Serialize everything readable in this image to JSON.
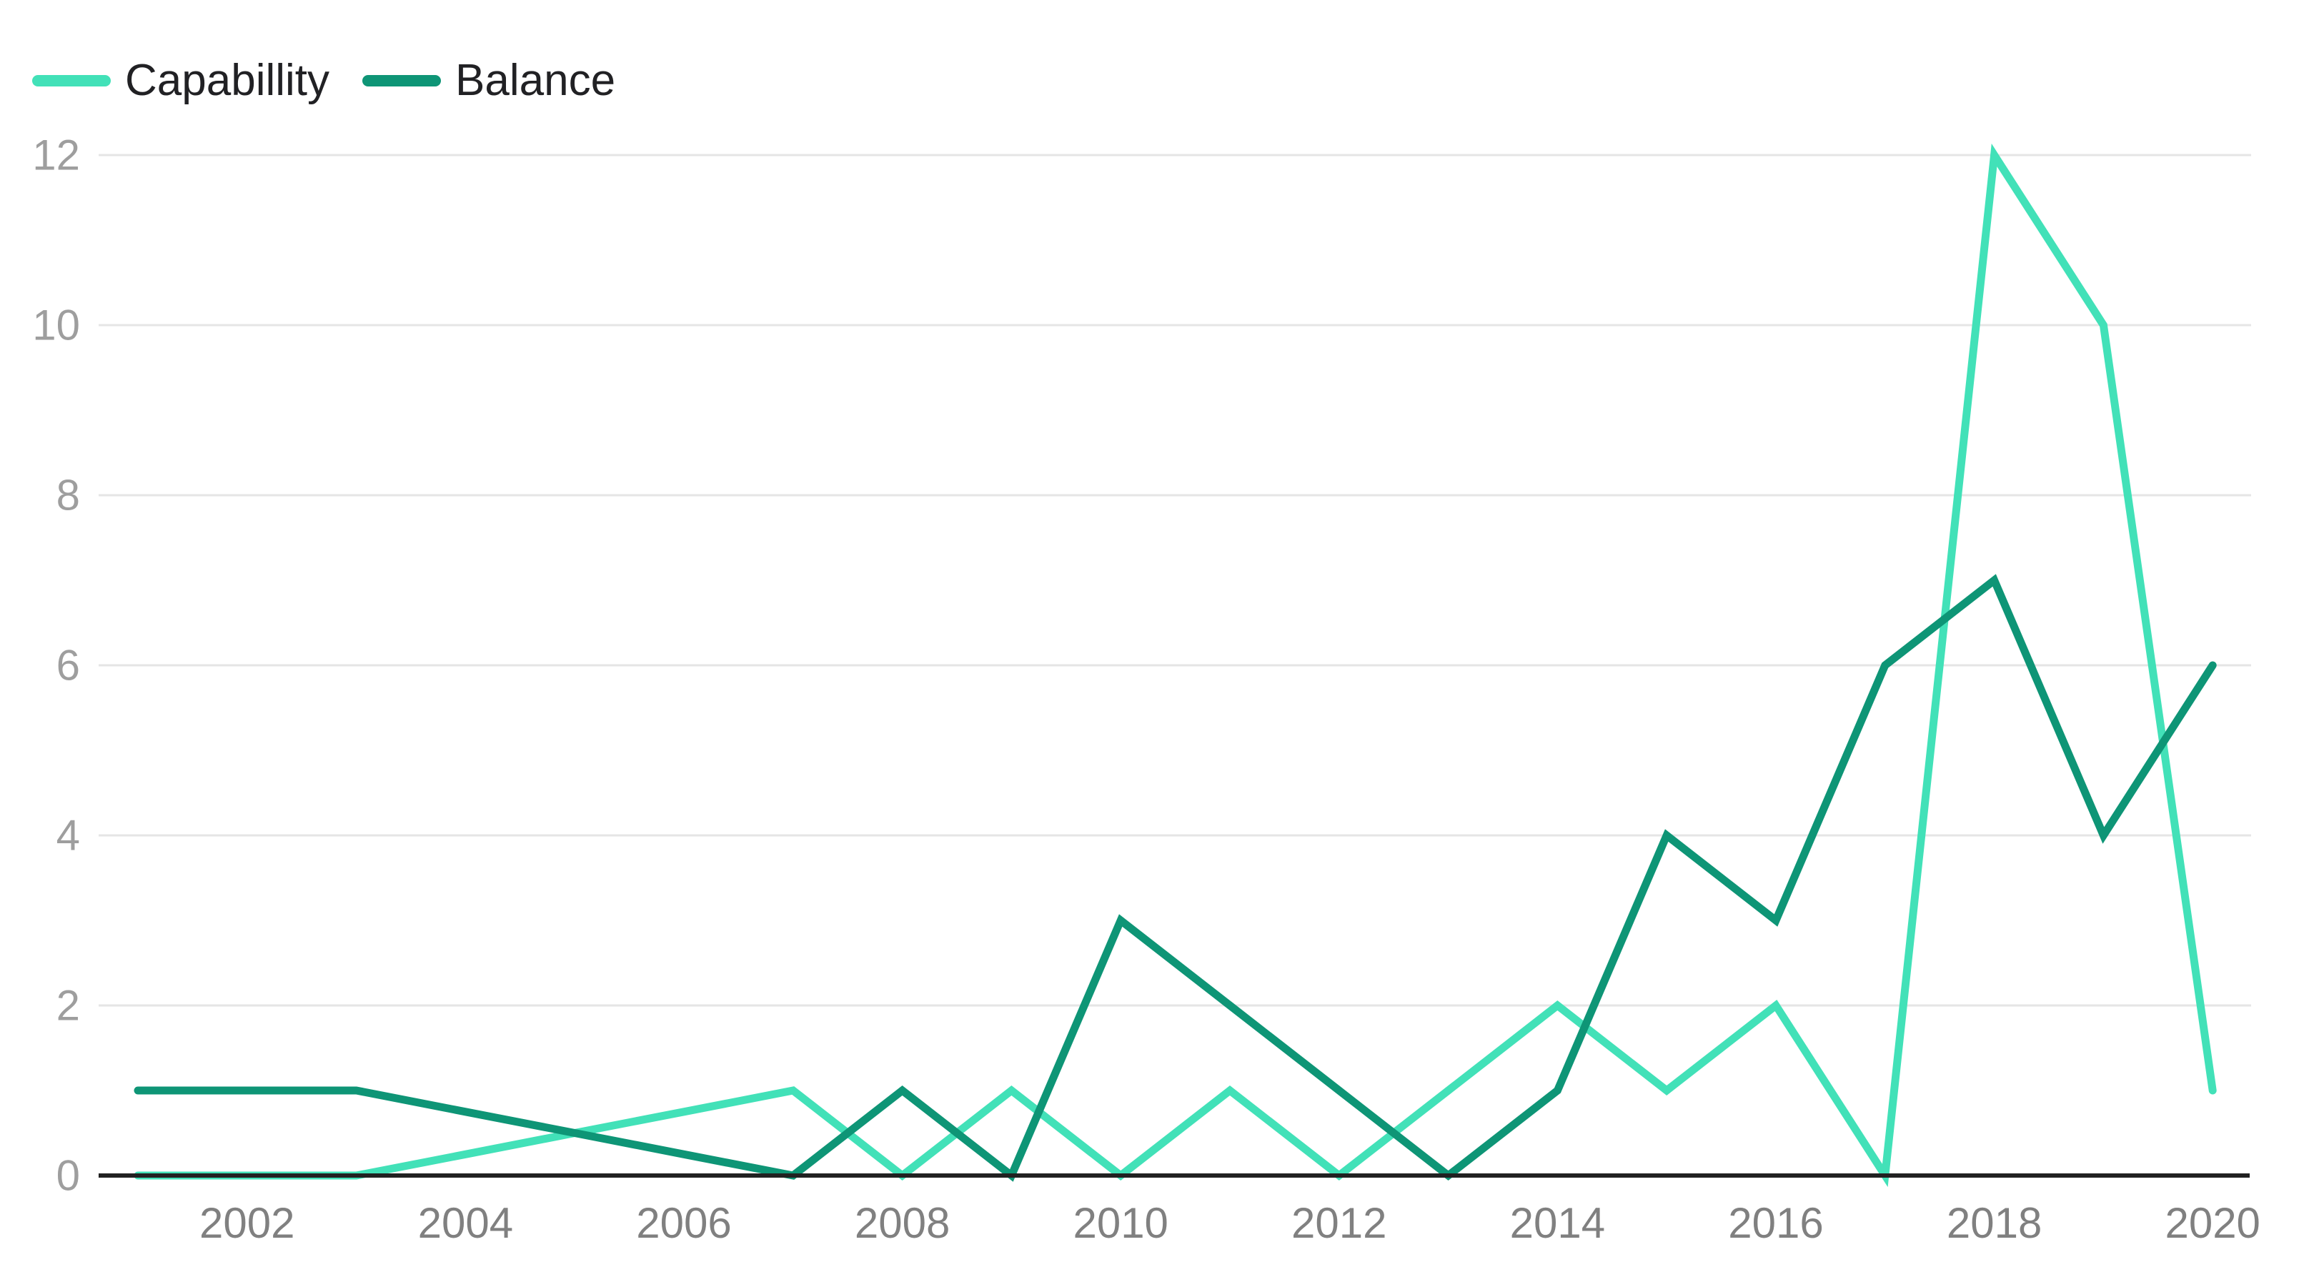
{
  "chart_data": {
    "type": "line",
    "title": "",
    "xlabel": "",
    "ylabel": "",
    "x": [
      2001,
      2002,
      2003,
      2004,
      2005,
      2006,
      2007,
      2008,
      2009,
      2010,
      2011,
      2012,
      2013,
      2014,
      2015,
      2016,
      2017,
      2018,
      2019,
      2020
    ],
    "series": [
      {
        "name": "Capabillity",
        "color": "#42E1B8",
        "values": [
          0,
          0,
          0,
          0.25,
          0.5,
          0.75,
          1,
          0,
          1,
          0,
          1,
          0,
          1,
          2,
          1,
          2,
          0,
          12,
          10,
          1
        ]
      },
      {
        "name": "Balance",
        "color": "#0E9576",
        "values": [
          1,
          1,
          1,
          0.75,
          0.5,
          0.25,
          0,
          1,
          0,
          3,
          2,
          1,
          0,
          1,
          4,
          3,
          6,
          7,
          4,
          6
        ]
      }
    ],
    "xticks": [
      2002,
      2004,
      2006,
      2008,
      2010,
      2012,
      2014,
      2016,
      2018,
      2020
    ],
    "yticks": [
      0,
      2,
      4,
      6,
      8,
      10,
      12
    ],
    "ylim": [
      0,
      12
    ],
    "xlim": [
      2001,
      2020
    ],
    "grid": true,
    "legend_position": "top-left",
    "grid_color": "#e5e5e5",
    "axis_color": "#212121"
  }
}
